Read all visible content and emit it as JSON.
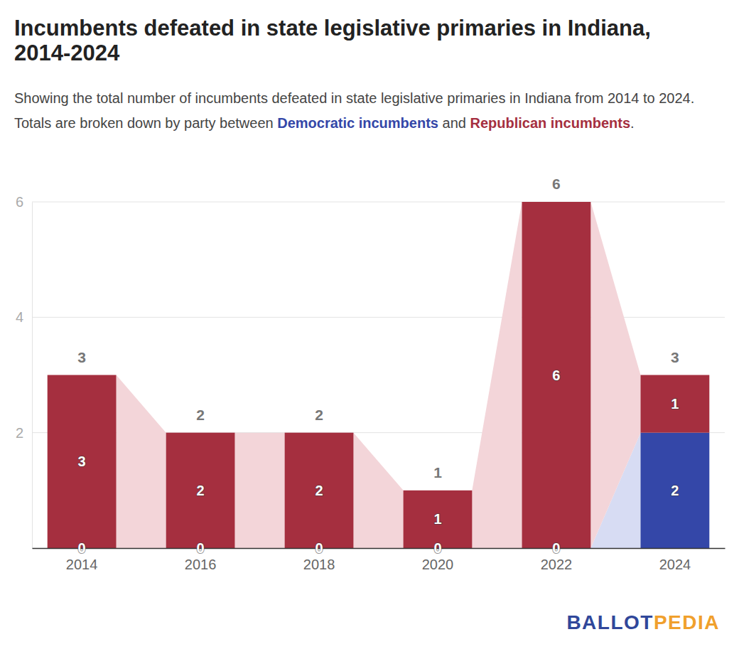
{
  "chart_data": {
    "type": "bar",
    "title": "Incumbents defeated in state legislative primaries in Indiana, 2014-2024",
    "subtitle": "Showing the total number of incumbents defeated in state legislative primaries in Indiana from 2014 to 2024. Totals are broken down by party between Democratic incumbents and Republican incumbents.",
    "categories": [
      "2014",
      "2016",
      "2018",
      "2020",
      "2022",
      "2024"
    ],
    "series": [
      {
        "name": "Democratic incumbents",
        "color": "#3447a8",
        "values": [
          0,
          0,
          0,
          0,
          0,
          2
        ]
      },
      {
        "name": "Republican incumbents",
        "color": "#a52f3f",
        "values": [
          3,
          2,
          2,
          1,
          6,
          1
        ]
      }
    ],
    "totals": [
      3,
      2,
      2,
      1,
      6,
      3
    ],
    "stacked": true,
    "data_labels": true,
    "ylim": [
      0,
      6
    ],
    "yticks": [
      2,
      4,
      6
    ],
    "grid": true,
    "credit": [
      "BALLOT",
      "PEDIA"
    ]
  }
}
